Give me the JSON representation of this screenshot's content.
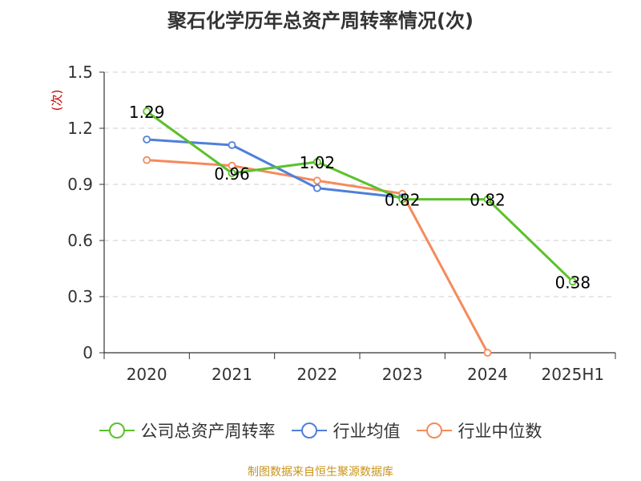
{
  "title": "聚石化学历年总资产周转率情况(次)",
  "footer": "制图数据来自恒生聚源数据库",
  "colors": {
    "series_1": "#5bc12b",
    "series_2": "#4f7fdb",
    "series_3": "#f58a5b",
    "axis": "#333333",
    "grid": "#cccccc",
    "ylabel": "#cc0000"
  },
  "chart_data": {
    "type": "line",
    "title": "聚石化学历年总资产周转率情况(次)",
    "categories": [
      "2020",
      "2021",
      "2022",
      "2023",
      "2024",
      "2025H1"
    ],
    "ylabel": "(次)",
    "xlabel": "",
    "ylim": [
      0,
      1.5
    ],
    "yticks": [
      {
        "value": 0,
        "label": "0"
      },
      {
        "value": 0.3,
        "label": "0.3"
      },
      {
        "value": 0.6,
        "label": "0.6"
      },
      {
        "value": 0.9,
        "label": "0.9"
      },
      {
        "value": 1.2,
        "label": "1.2"
      },
      {
        "value": 1.5,
        "label": "1.5"
      }
    ],
    "grid": true,
    "legend_position": "bottom",
    "series": [
      {
        "name": "公司总资产周转率",
        "color": "#5bc12b",
        "values": [
          1.29,
          0.96,
          1.02,
          0.82,
          0.82,
          0.38
        ],
        "labels": [
          "1.29",
          "0.96",
          "1.02",
          "0.82",
          "0.82",
          "0.38"
        ]
      },
      {
        "name": "行业均值",
        "color": "#4f7fdb",
        "values": [
          1.14,
          1.11,
          0.88,
          0.83,
          null,
          null
        ]
      },
      {
        "name": "行业中位数",
        "color": "#f58a5b",
        "values": [
          1.03,
          1.0,
          0.92,
          0.85,
          0.0,
          null
        ]
      }
    ]
  }
}
